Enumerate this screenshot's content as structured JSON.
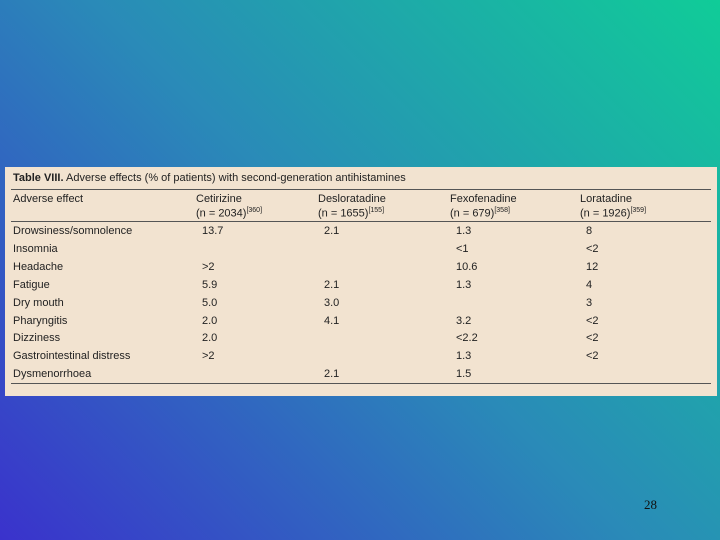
{
  "table": {
    "title_label": "Table VIII.",
    "title": "Adverse effects (% of patients) with second-generation antihistamines",
    "columns": [
      {
        "name": "Adverse effect"
      },
      {
        "name": "Cetirizine",
        "n": "(n = 2034)",
        "ref": "[360]"
      },
      {
        "name": "Desloratadine",
        "n": "(n = 1655)",
        "ref": "[155]"
      },
      {
        "name": "Fexofenadine",
        "n": "(n = 679)",
        "ref": "[358]"
      },
      {
        "name": "Loratadine",
        "n": "(n = 1926)",
        "ref": "[359]"
      }
    ],
    "rows": [
      [
        "Drowsiness/somnolence",
        "13.7",
        "2.1",
        "1.3",
        "8"
      ],
      [
        "Insomnia",
        null,
        null,
        "<1",
        "<2"
      ],
      [
        "Headache",
        ">2",
        null,
        "10.6",
        "12"
      ],
      [
        "Fatigue",
        "5.9",
        "2.1",
        "1.3",
        "4"
      ],
      [
        "Dry mouth",
        "5.0",
        "3.0",
        null,
        "3"
      ],
      [
        "Pharyngitis",
        "2.0",
        "4.1",
        "3.2",
        "<2"
      ],
      [
        "Dizziness",
        "2.0",
        null,
        "<2.2",
        "<2"
      ],
      [
        "Gastrointestinal distress",
        ">2",
        null,
        "1.3",
        "<2"
      ],
      [
        "Dysmenorrhoea",
        null,
        "2.1",
        "1.5",
        null
      ]
    ]
  },
  "page_number": "28"
}
